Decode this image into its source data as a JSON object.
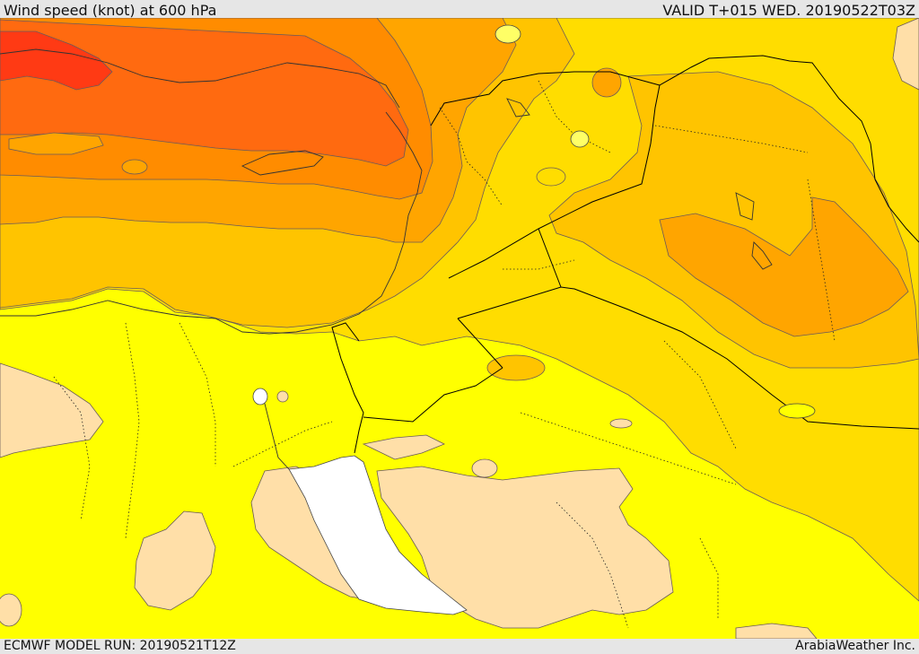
{
  "header": {
    "title": "Wind speed (knot) at 600 hPa",
    "valid": "VALID T+015 WED. 20190522T03Z"
  },
  "footer": {
    "model_run": "ECMWF MODEL RUN: 20190521T12Z",
    "credit": "ArabiaWeather Inc."
  },
  "map": {
    "variable": "wind speed",
    "units": "knot",
    "level_hpa": 600,
    "colors": {
      "calm": "#ffdfa8",
      "light": "#ffff00",
      "moderate": "#ffdd00",
      "fresh": "#ffc400",
      "strong": "#ffa500",
      "stronger": "#ff8c00",
      "very_strong": "#ff6a10",
      "max": "#ff3a14",
      "water_body": "#ffffff",
      "contour": "#6a5a5a",
      "border": "#000000"
    }
  }
}
